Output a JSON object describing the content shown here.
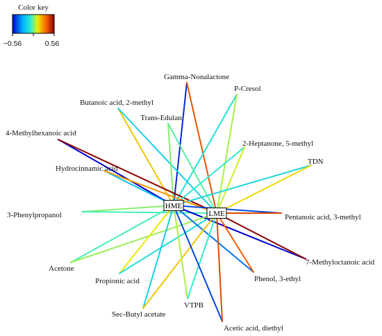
{
  "color_key": {
    "title": "Color key",
    "min_label": "−0.56",
    "max_label": "0.56",
    "min": -0.56,
    "max": 0.56
  },
  "hubs": [
    {
      "id": "HME",
      "label": "HME"
    },
    {
      "id": "LME",
      "label": "LME"
    }
  ],
  "compounds": [
    {
      "id": "gamma-nonalactone",
      "label": "Gamma-Nonalactone"
    },
    {
      "id": "p-cresol",
      "label": "P-Cresol"
    },
    {
      "id": "butanoic-acid-2-methyl",
      "label": "Butanoic acid, 2-methyl"
    },
    {
      "id": "trans-edulan",
      "label": "Trans-Edulan"
    },
    {
      "id": "4-methylhexanoic-acid",
      "label": "4-Methylhexanoic acid"
    },
    {
      "id": "2-heptanone-5-methyl",
      "label": "2-Heptanone, 5-methyl"
    },
    {
      "id": "tdn",
      "label": "TDN"
    },
    {
      "id": "hydrocinnamic-acid",
      "label": "Hydrocinnamic acid"
    },
    {
      "id": "3-phenylpropanol",
      "label": "3-Phenylpropanol"
    },
    {
      "id": "pentanoic-acid-3-methyl",
      "label": "Pentanoic acid, 3-methyl"
    },
    {
      "id": "7-methyloctanoic-acid",
      "label": "7-Methyloctanoic acid"
    },
    {
      "id": "acetone",
      "label": "Acetone"
    },
    {
      "id": "propionic-acid",
      "label": "Propionic acid"
    },
    {
      "id": "phenol-3-ethyl",
      "label": "Phenol, 3-ethyl"
    },
    {
      "id": "sec-butyl-acetate",
      "label": "Sec-Butyl acetate"
    },
    {
      "id": "vtpb",
      "label": "VTPB"
    },
    {
      "id": "acetic-acid-diethyl",
      "label": "Acetic acid, diethyl"
    }
  ],
  "edges": [
    {
      "hub": "HME",
      "compound": "gamma-nonalactone",
      "value": -0.5
    },
    {
      "hub": "LME",
      "compound": "gamma-nonalactone",
      "value": 0.38
    },
    {
      "hub": "HME",
      "compound": "p-cresol",
      "value": -0.12
    },
    {
      "hub": "LME",
      "compound": "p-cresol",
      "value": 0.05
    },
    {
      "hub": "HME",
      "compound": "butanoic-acid-2-methyl",
      "value": 0.18
    },
    {
      "hub": "LME",
      "compound": "butanoic-acid-2-methyl",
      "value": -0.18
    },
    {
      "hub": "HME",
      "compound": "trans-edulan",
      "value": 0.02
    },
    {
      "hub": "LME",
      "compound": "trans-edulan",
      "value": -0.02
    },
    {
      "hub": "HME",
      "compound": "4-methylhexanoic-acid",
      "value": -0.56
    },
    {
      "hub": "LME",
      "compound": "4-methylhexanoic-acid",
      "value": 0.56
    },
    {
      "hub": "HME",
      "compound": "2-heptanone-5-methyl",
      "value": -0.08
    },
    {
      "hub": "LME",
      "compound": "2-heptanone-5-methyl",
      "value": 0.08
    },
    {
      "hub": "HME",
      "compound": "tdn",
      "value": -0.15
    },
    {
      "hub": "LME",
      "compound": "tdn",
      "value": 0.15
    },
    {
      "hub": "HME",
      "compound": "hydrocinnamic-acid",
      "value": -0.24
    },
    {
      "hub": "LME",
      "compound": "hydrocinnamic-acid",
      "value": 0.26
    },
    {
      "hub": "HME",
      "compound": "3-phenylpropanol",
      "value": 0.02
    },
    {
      "hub": "LME",
      "compound": "3-phenylpropanol",
      "value": -0.04
    },
    {
      "hub": "HME",
      "compound": "pentanoic-acid-3-methyl",
      "value": -0.45
    },
    {
      "hub": "LME",
      "compound": "pentanoic-acid-3-methyl",
      "value": 0.4
    },
    {
      "hub": "HME",
      "compound": "7-methyloctanoic-acid",
      "value": -0.56
    },
    {
      "hub": "LME",
      "compound": "7-methyloctanoic-acid",
      "value": 0.56
    },
    {
      "hub": "HME",
      "compound": "acetone",
      "value": -0.04
    },
    {
      "hub": "LME",
      "compound": "acetone",
      "value": 0.04
    },
    {
      "hub": "HME",
      "compound": "propionic-acid",
      "value": 0.12
    },
    {
      "hub": "LME",
      "compound": "propionic-acid",
      "value": -0.12
    },
    {
      "hub": "HME",
      "compound": "phenol-3-ethyl",
      "value": -0.38
    },
    {
      "hub": "LME",
      "compound": "phenol-3-ethyl",
      "value": 0.36
    },
    {
      "hub": "HME",
      "compound": "sec-butyl-acetate",
      "value": -0.18
    },
    {
      "hub": "LME",
      "compound": "sec-butyl-acetate",
      "value": 0.18
    },
    {
      "hub": "HME",
      "compound": "vtpb",
      "value": 0.06
    },
    {
      "hub": "LME",
      "compound": "vtpb",
      "value": -0.06
    },
    {
      "hub": "HME",
      "compound": "acetic-acid-diethyl",
      "value": -0.45
    },
    {
      "hub": "LME",
      "compound": "acetic-acid-diethyl",
      "value": 0.4
    }
  ]
}
